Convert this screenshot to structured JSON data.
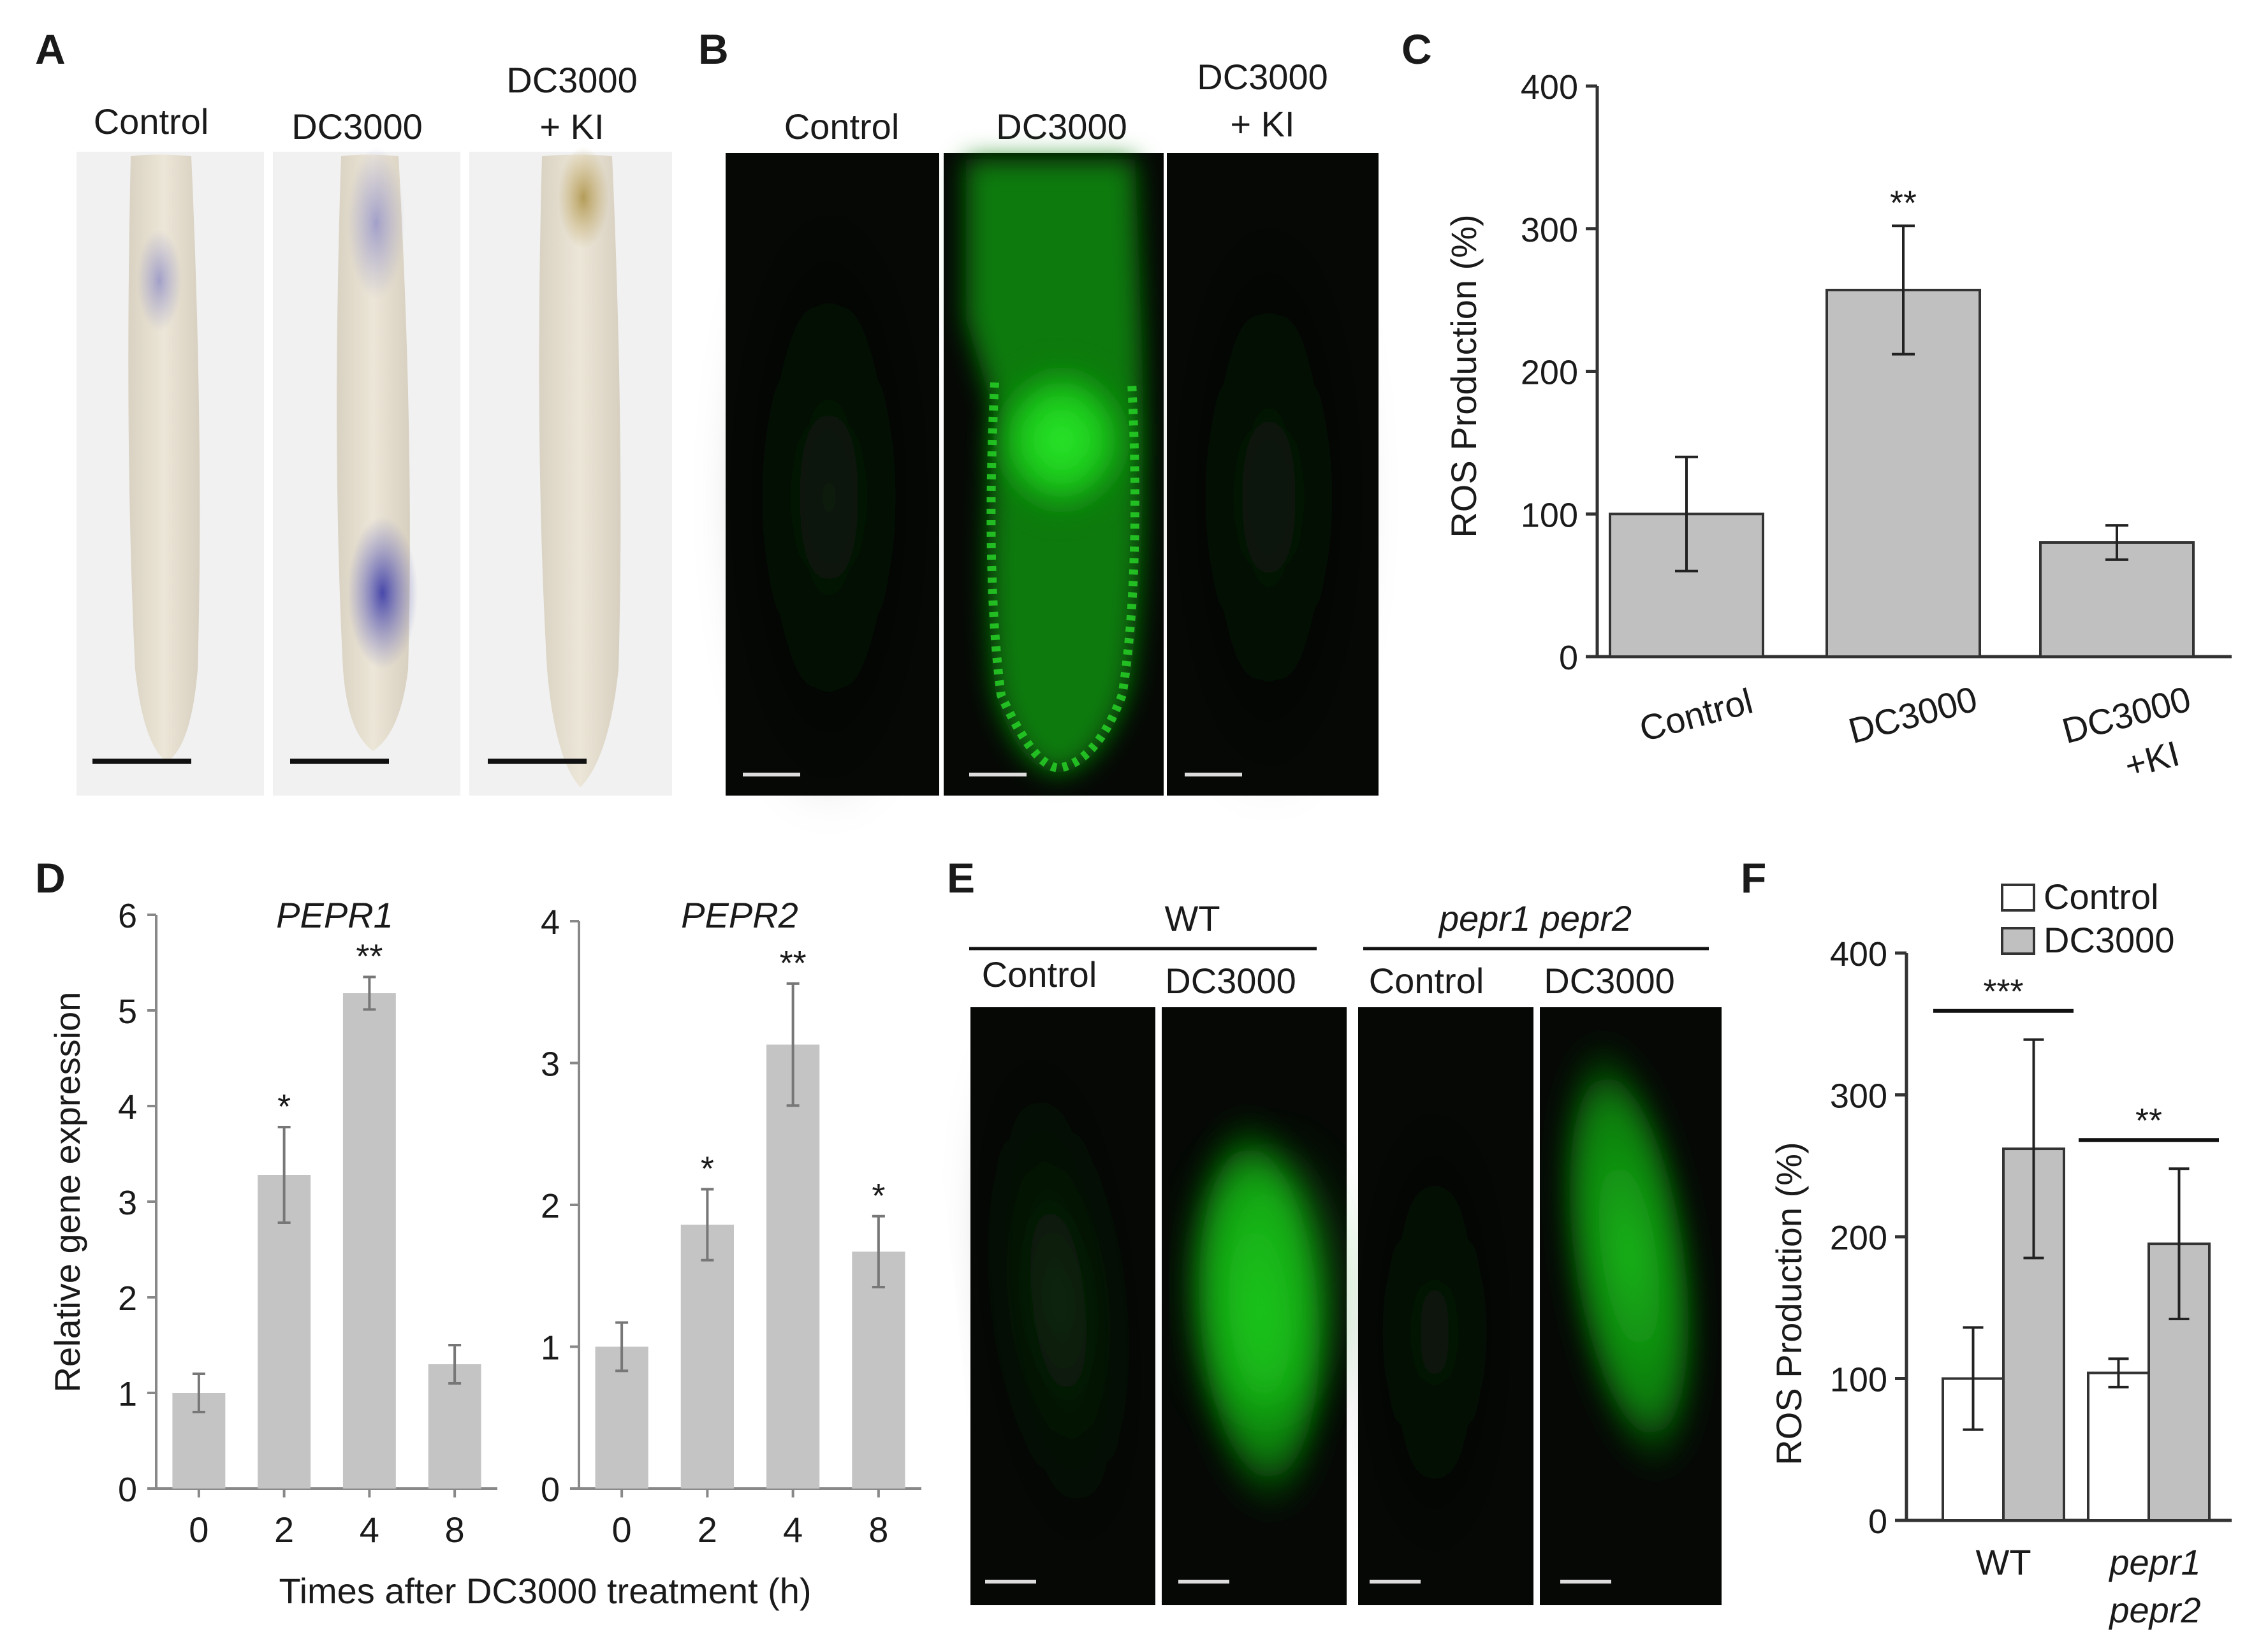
{
  "panels": {
    "A": {
      "letter": "A",
      "columns": [
        {
          "label_lines": [
            "Control"
          ]
        },
        {
          "label_lines": [
            "DC3000"
          ]
        },
        {
          "label_lines": [
            "DC3000",
            "+ KI"
          ]
        }
      ]
    },
    "B": {
      "letter": "B",
      "columns": [
        {
          "label_lines": [
            "Control"
          ]
        },
        {
          "label_lines": [
            "DC3000"
          ]
        },
        {
          "label_lines": [
            "DC3000",
            "+ KI"
          ]
        }
      ]
    },
    "C": {
      "letter": "C"
    },
    "D": {
      "letter": "D",
      "shared_xlabel": "Times after DC3000 treatment (h)"
    },
    "E": {
      "letter": "E",
      "groups": [
        {
          "label": "WT",
          "italic": false,
          "sub": [
            "Control",
            "DC3000"
          ]
        },
        {
          "label": "pepr1 pepr2",
          "italic": true,
          "sub": [
            "Control",
            "DC3000"
          ]
        }
      ]
    },
    "F": {
      "letter": "F"
    }
  },
  "colors": {
    "bar_gray": "#c0c0c0",
    "bar_light": "#c4c4c4",
    "bar_white": "#ffffff",
    "gfp_green": "#1ed21e",
    "stain_blue": "#4a4aa8",
    "background_dark": "#050805"
  },
  "chart_data": [
    {
      "id": "C",
      "type": "bar",
      "categories": [
        [
          "Control"
        ],
        [
          "DC3000"
        ],
        [
          "DC3000",
          "+KI"
        ]
      ],
      "values": [
        100,
        257,
        80
      ],
      "errors": [
        40,
        45,
        12
      ],
      "significance": [
        "",
        "**",
        ""
      ],
      "ylabel": "ROS Production (%)",
      "yticks": [
        "0",
        "100",
        "200",
        "300",
        "400"
      ],
      "ylim": [
        0,
        400
      ]
    },
    {
      "id": "D1",
      "type": "bar",
      "title": "PEPR1",
      "categories": [
        "0",
        "2",
        "4",
        "8"
      ],
      "values": [
        1.0,
        3.28,
        5.18,
        1.3
      ],
      "errors": [
        0.2,
        0.5,
        0.17,
        0.2
      ],
      "significance": [
        "",
        "*",
        "**",
        ""
      ],
      "ylabel": "Relative gene expression",
      "yticks": [
        "0",
        "1",
        "2",
        "3",
        "4",
        "5",
        "6"
      ],
      "ylim": [
        0,
        6
      ]
    },
    {
      "id": "D2",
      "type": "bar",
      "title": "PEPR2",
      "categories": [
        "0",
        "2",
        "4",
        "8"
      ],
      "values": [
        1.0,
        1.86,
        3.13,
        1.67
      ],
      "errors": [
        0.17,
        0.25,
        0.43,
        0.25
      ],
      "significance": [
        "",
        "*",
        "**",
        "*"
      ],
      "yticks": [
        "0",
        "1",
        "2",
        "3",
        "4"
      ],
      "ylim": [
        0,
        4
      ]
    },
    {
      "id": "F",
      "type": "bar",
      "groups": [
        [
          "WT"
        ],
        [
          "pepr1",
          "pepr2"
        ]
      ],
      "series": [
        {
          "name": "Control",
          "values": [
            100,
            104
          ],
          "errors": [
            36,
            10
          ]
        },
        {
          "name": "DC3000",
          "values": [
            262,
            195
          ],
          "errors": [
            77,
            53
          ]
        }
      ],
      "significance": [
        "***",
        "**"
      ],
      "ylabel": "ROS Production (%)",
      "yticks": [
        "0",
        "100",
        "200",
        "300",
        "400"
      ],
      "ylim": [
        0,
        400
      ],
      "legend": "top"
    }
  ]
}
